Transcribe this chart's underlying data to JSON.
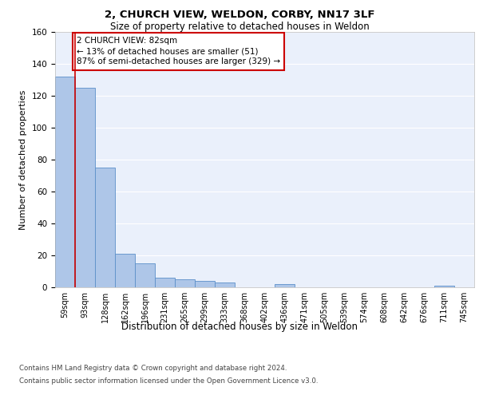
{
  "title": "2, CHURCH VIEW, WELDON, CORBY, NN17 3LF",
  "subtitle": "Size of property relative to detached houses in Weldon",
  "xlabel": "Distribution of detached houses by size in Weldon",
  "ylabel": "Number of detached properties",
  "categories": [
    "59sqm",
    "93sqm",
    "128sqm",
    "162sqm",
    "196sqm",
    "231sqm",
    "265sqm",
    "299sqm",
    "333sqm",
    "368sqm",
    "402sqm",
    "436sqm",
    "471sqm",
    "505sqm",
    "539sqm",
    "574sqm",
    "608sqm",
    "642sqm",
    "676sqm",
    "711sqm",
    "745sqm"
  ],
  "values": [
    132,
    125,
    75,
    21,
    15,
    6,
    5,
    4,
    3,
    0,
    0,
    2,
    0,
    0,
    0,
    0,
    0,
    0,
    0,
    1,
    0
  ],
  "bar_color": "#aec6e8",
  "bar_edge_color": "#5b8fc9",
  "subject_line_color": "#cc0000",
  "annotation_text": "2 CHURCH VIEW: 82sqm\n← 13% of detached houses are smaller (51)\n87% of semi-detached houses are larger (329) →",
  "annotation_box_color": "#ffffff",
  "annotation_box_edge_color": "#cc0000",
  "ylim": [
    0,
    160
  ],
  "yticks": [
    0,
    20,
    40,
    60,
    80,
    100,
    120,
    140,
    160
  ],
  "background_color": "#eaf0fb",
  "grid_color": "#ffffff",
  "footer_line1": "Contains HM Land Registry data © Crown copyright and database right 2024.",
  "footer_line2": "Contains public sector information licensed under the Open Government Licence v3.0."
}
